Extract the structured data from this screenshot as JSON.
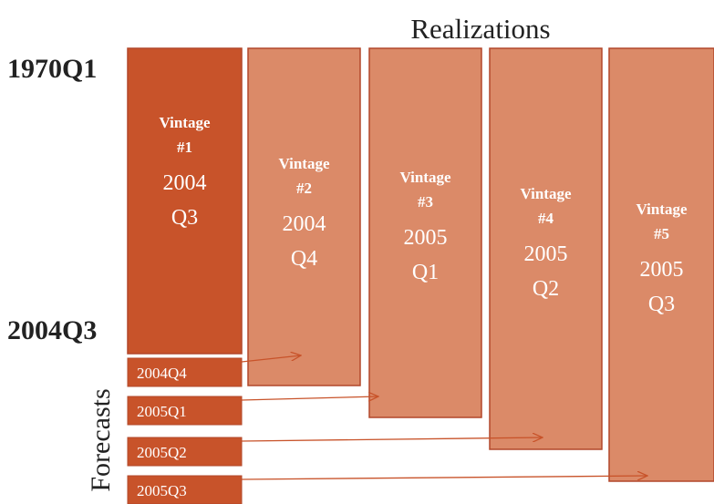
{
  "header": {
    "title": "Realizations"
  },
  "axis_labels": {
    "start": "1970Q1",
    "end": "2004Q3",
    "forecasts": "Forecasts"
  },
  "vintages": [
    {
      "label": "Vintage",
      "number": "#1",
      "year": "2004",
      "quarter": "Q3"
    },
    {
      "label": "Vintage",
      "number": "#2",
      "year": "2004",
      "quarter": "Q4"
    },
    {
      "label": "Vintage",
      "number": "#3",
      "year": "2005",
      "quarter": "Q1"
    },
    {
      "label": "Vintage",
      "number": "#4",
      "year": "2005",
      "quarter": "Q2"
    },
    {
      "label": "Vintage",
      "number": "#5",
      "year": "2005",
      "quarter": "Q3"
    }
  ],
  "forecasts": [
    "2004Q4",
    "2005Q1",
    "2005Q2",
    "2005Q3"
  ]
}
